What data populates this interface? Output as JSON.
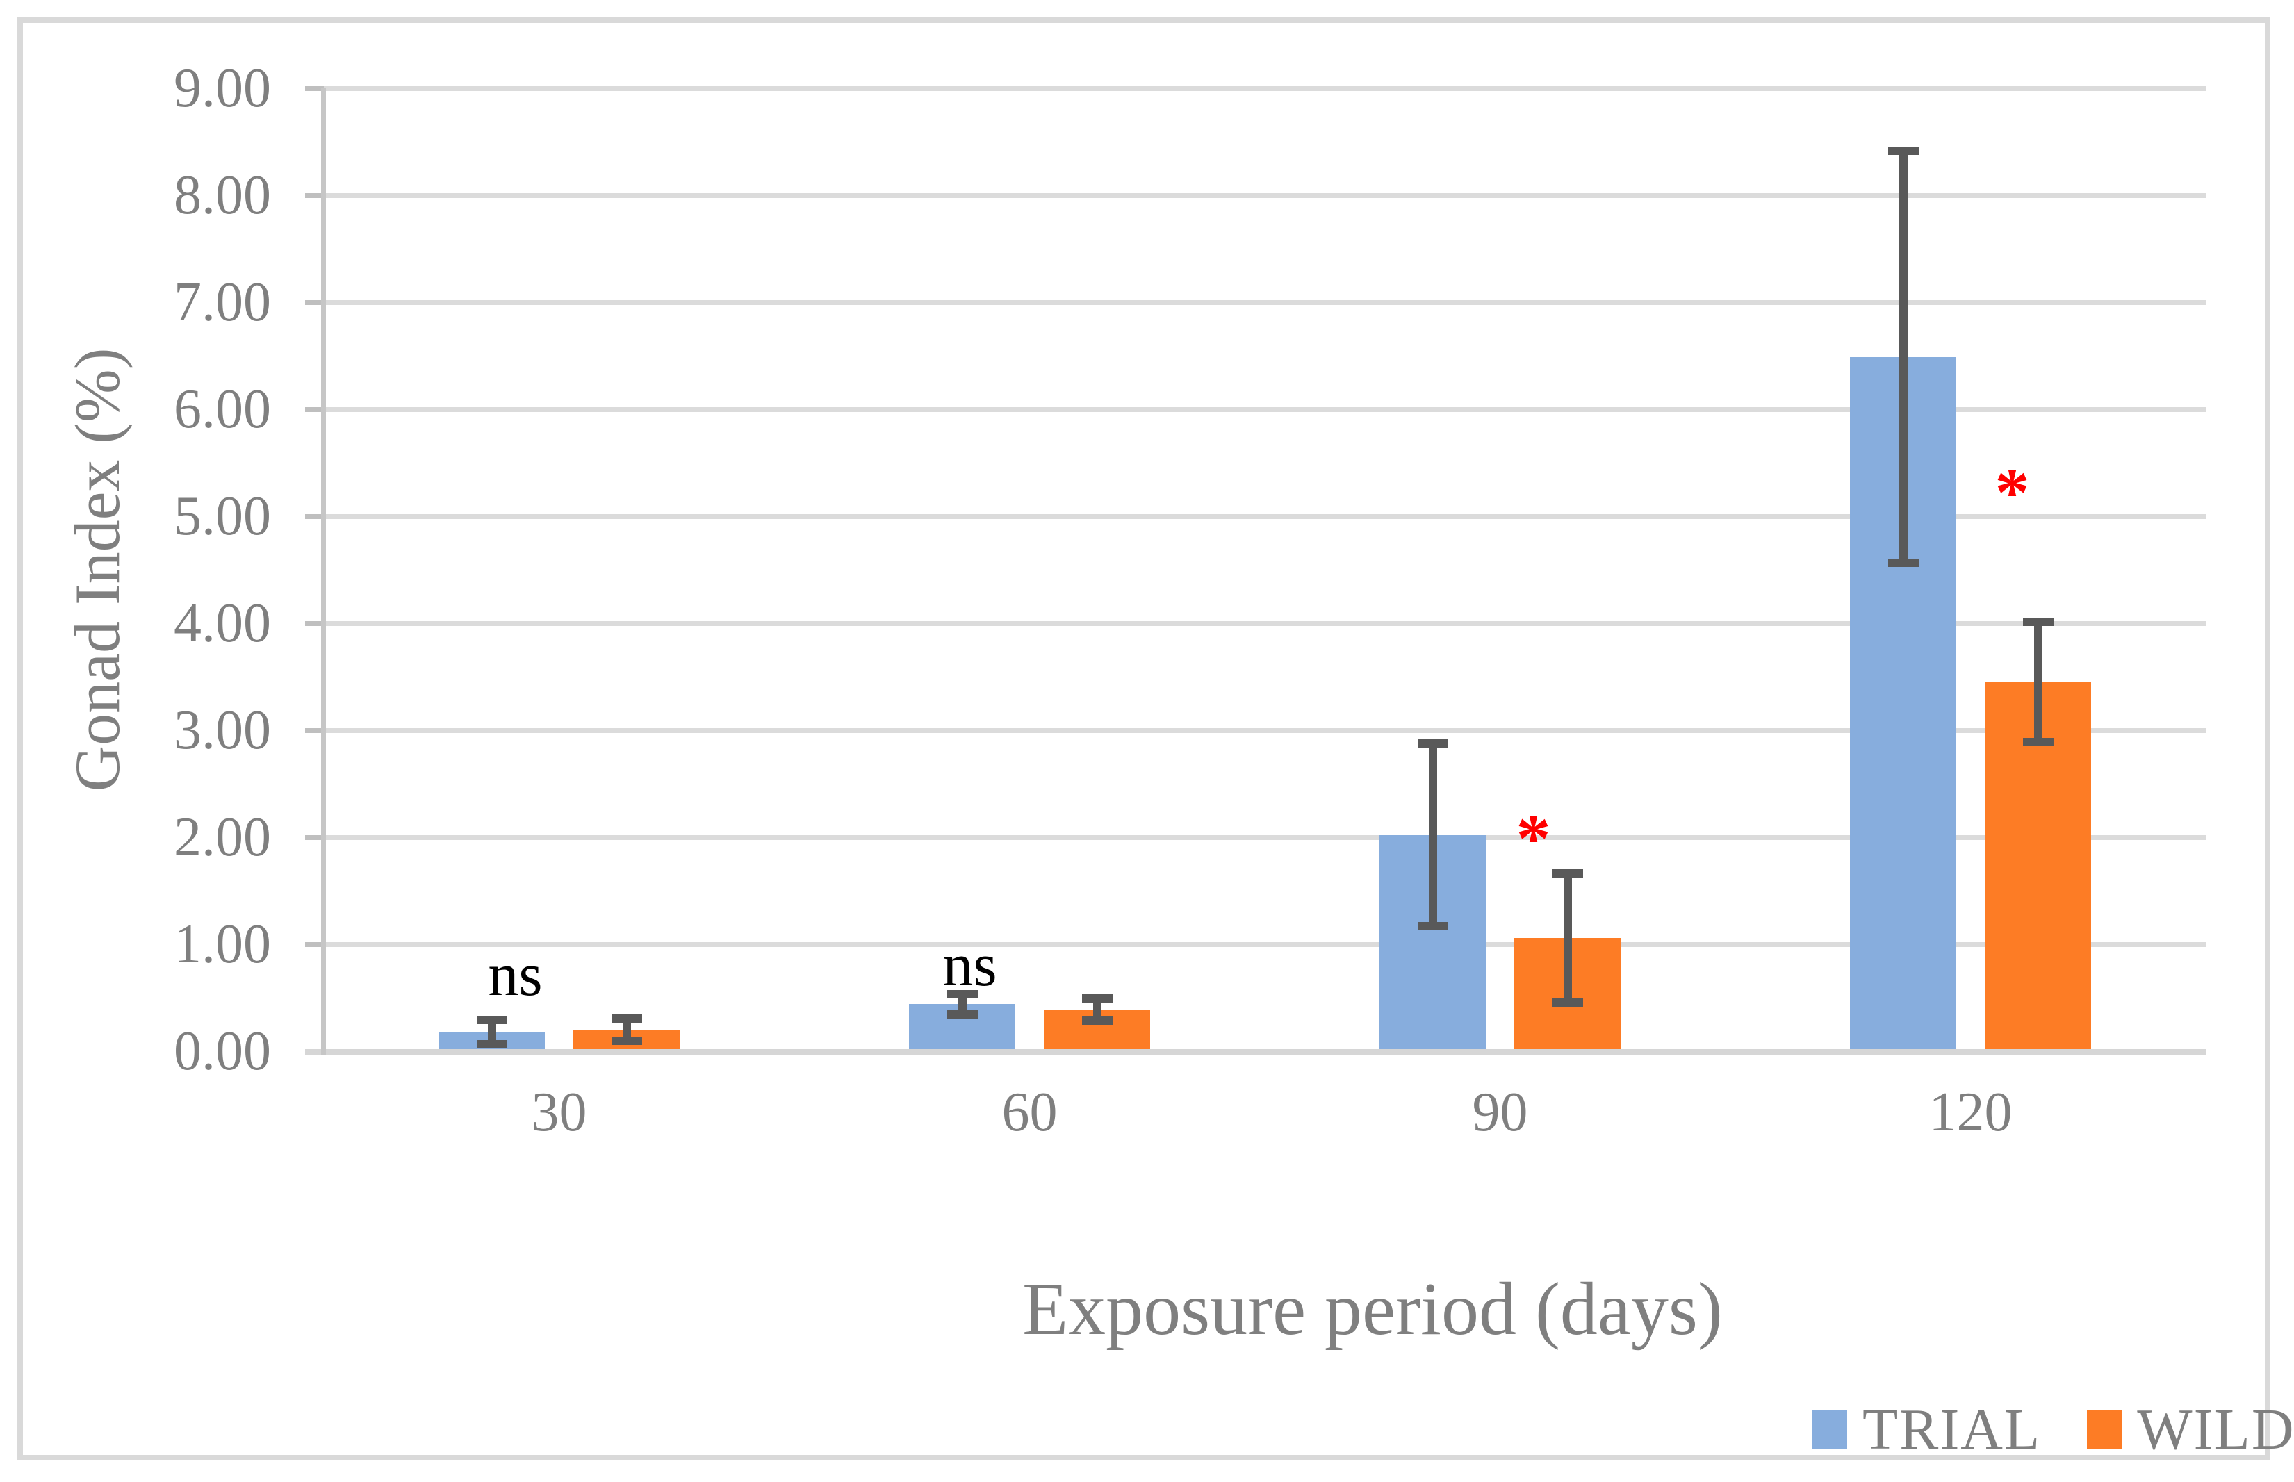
{
  "chart_data": {
    "type": "bar",
    "title": "",
    "xlabel": "Exposure period (days)",
    "ylabel": "Gonad Index (%)",
    "categories": [
      "30",
      "60",
      "90",
      "120"
    ],
    "series": [
      {
        "name": "TRIAL",
        "color": "#87ADDD",
        "values": [
          0.18,
          0.44,
          2.02,
          6.49
        ],
        "errors": [
          0.12,
          0.1,
          0.86,
          1.93
        ]
      },
      {
        "name": "WILD",
        "color": "#FD7C25",
        "values": [
          0.2,
          0.39,
          1.06,
          3.45
        ],
        "errors": [
          0.11,
          0.11,
          0.61,
          0.57
        ]
      }
    ],
    "ylim": [
      0,
      9
    ],
    "ytick_step": 1,
    "ytick_labels": [
      "0.00",
      "1.00",
      "2.00",
      "3.00",
      "4.00",
      "5.00",
      "6.00",
      "7.00",
      "8.00",
      "9.00"
    ],
    "grid": true,
    "legend_position": "bottom-right",
    "annotations": [
      {
        "text": "ns",
        "color": "#000000",
        "category_index": 0,
        "dx": -63,
        "value": 0.71
      },
      {
        "text": "ns",
        "color": "#000000",
        "category_index": 1,
        "dx": -86,
        "value": 0.8
      },
      {
        "text": "*",
        "color": "#FF0000",
        "category_index": 2,
        "dx": 48,
        "value": 1.99
      },
      {
        "text": "*",
        "color": "#FF0000",
        "category_index": 3,
        "dx": 60,
        "value": 5.22
      }
    ]
  },
  "colors": {
    "gridline": "#DBDBDB",
    "axis_line": "#C6C6C6",
    "tick": "#BFBFBF",
    "error_bar": "#595959",
    "label_text": "#7F7F7F",
    "figure_border": "#D9D9D9",
    "significance": "#FF0000",
    "not_significant": "#000000"
  }
}
